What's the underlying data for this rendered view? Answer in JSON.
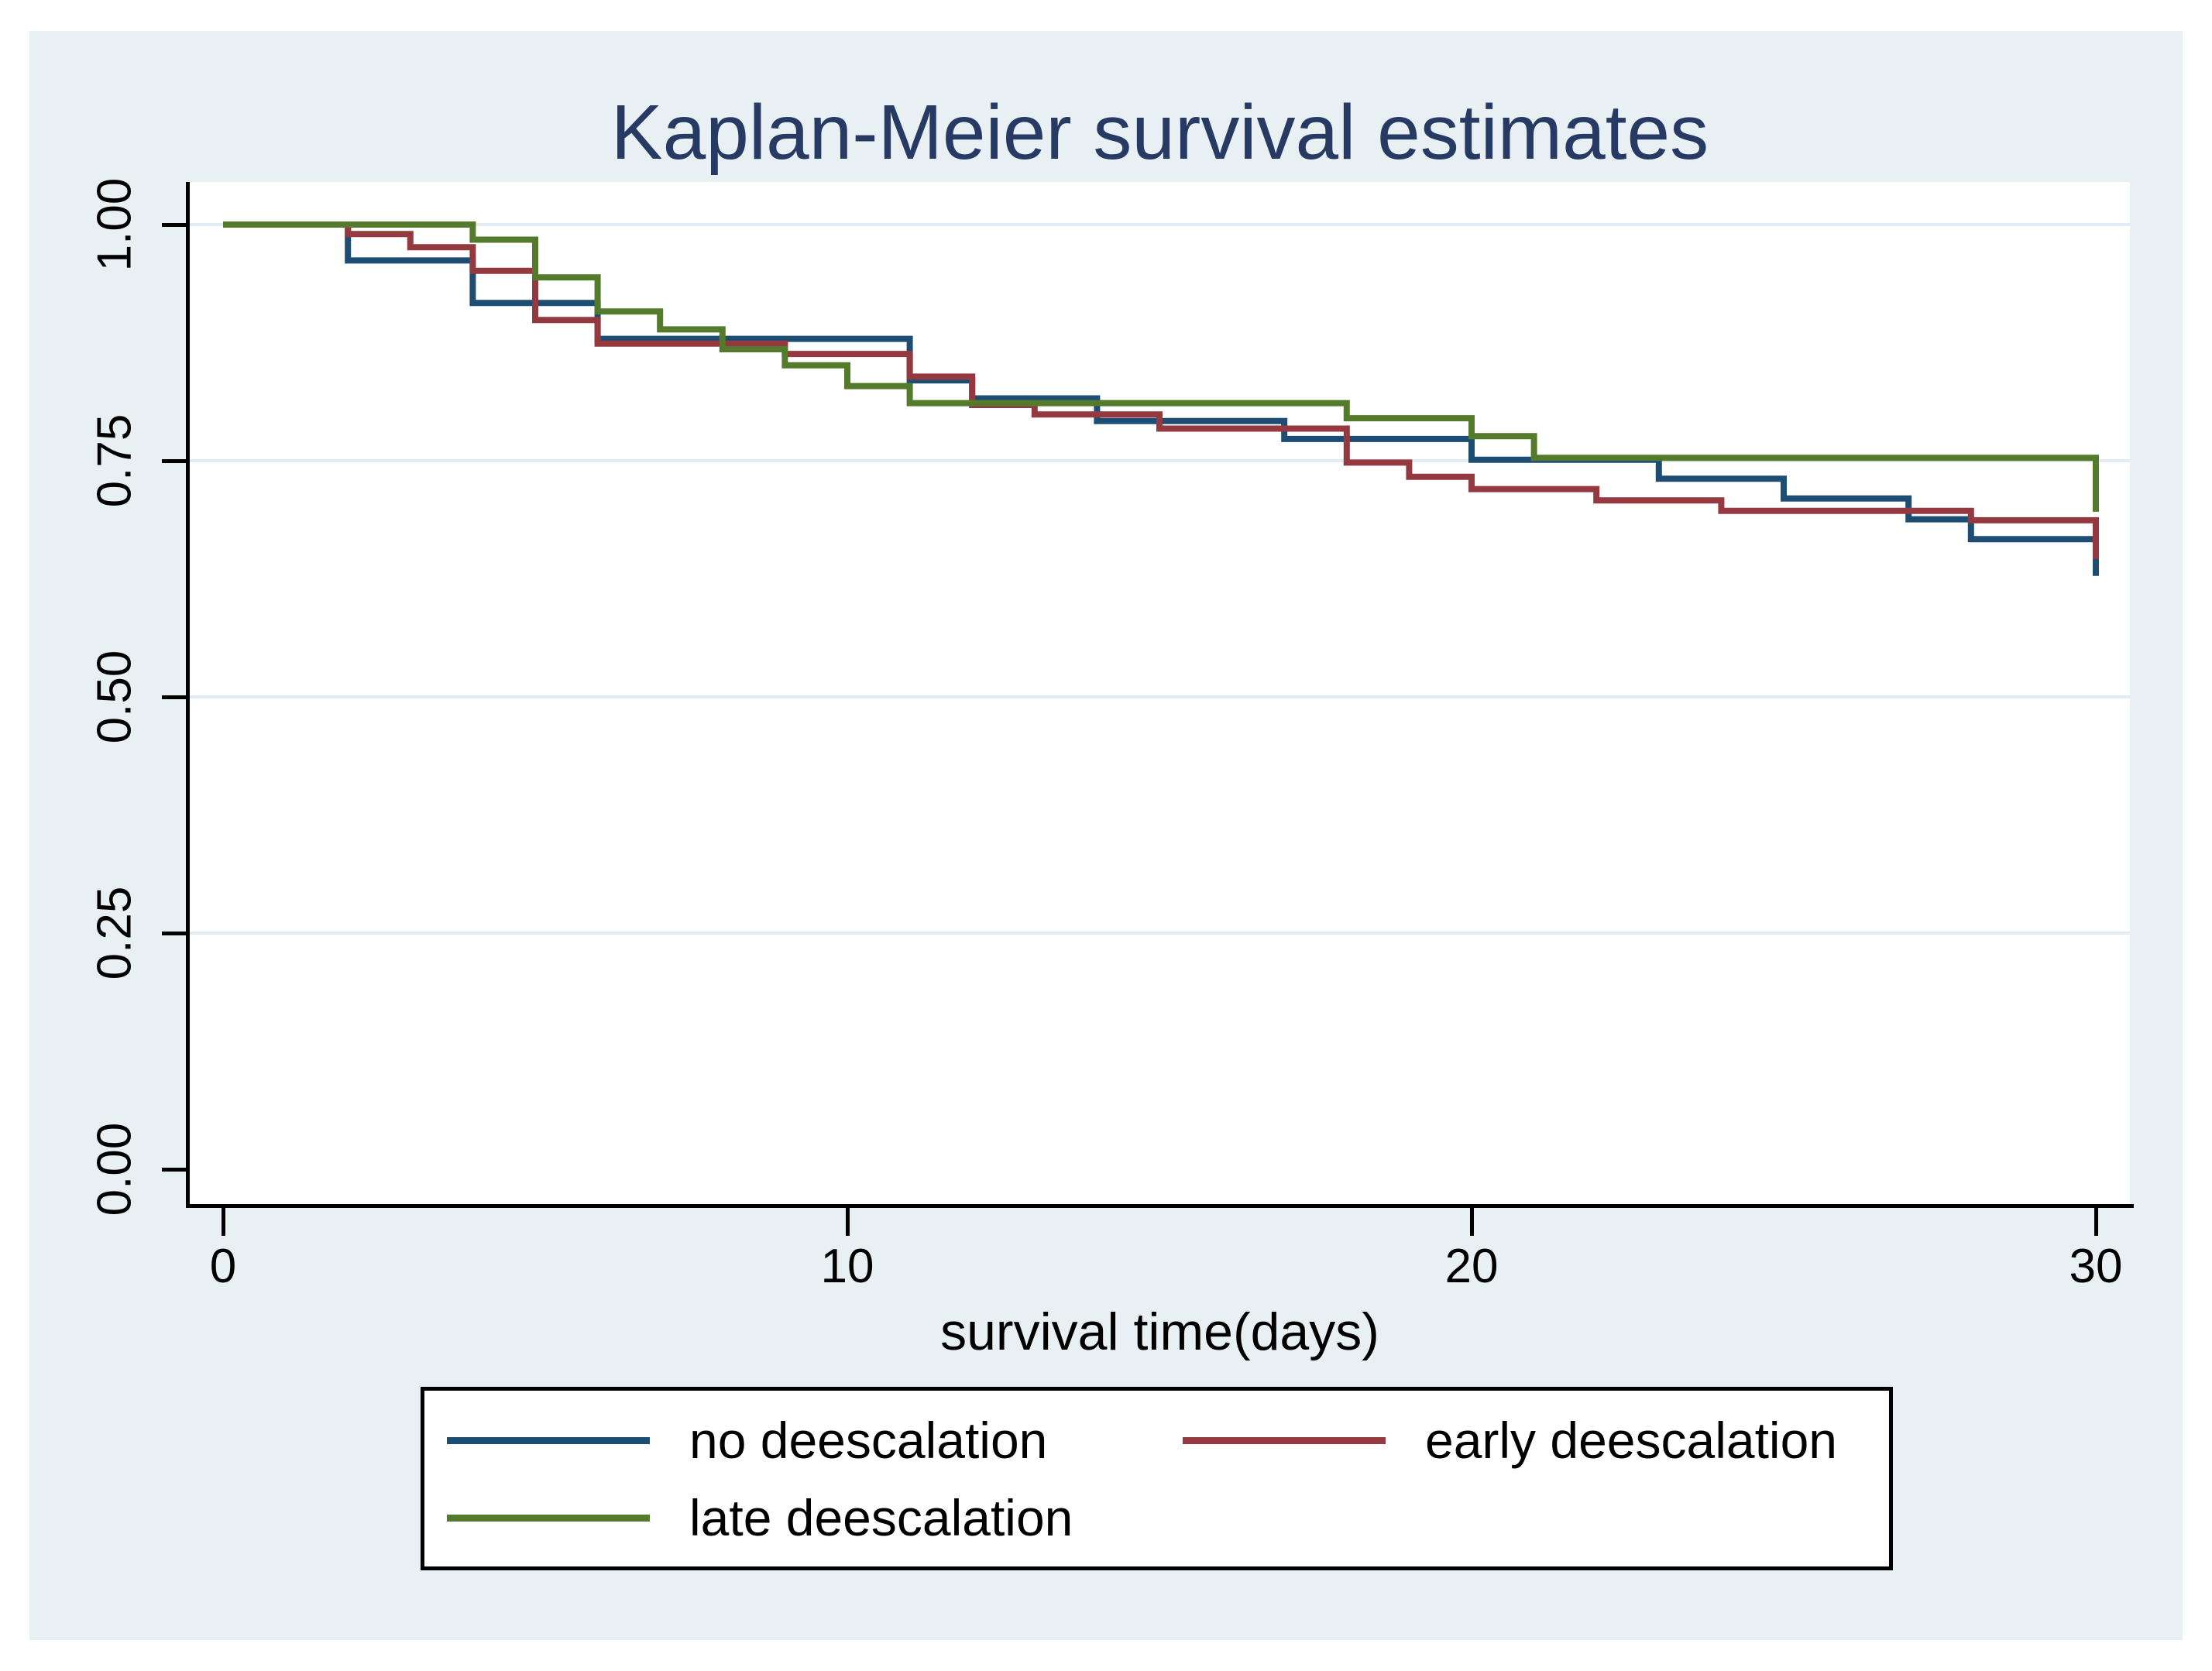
{
  "window": {
    "outer_margin_color": "#ffffff",
    "canvas_background": "#e9f0f4",
    "plot_background": "#ffffff",
    "gridline_color": "#e2ebf1",
    "axis_color": "#000000"
  },
  "title": {
    "text": "Kaplan-Meier survival estimates",
    "color": "#263a64"
  },
  "x_axis": {
    "label": "survival time(days)",
    "tick_labels": [
      "0",
      "10",
      "20",
      "30"
    ],
    "tick_values": [
      0,
      10,
      20,
      30
    ]
  },
  "y_axis": {
    "tick_labels": [
      "0.00",
      "0.25",
      "0.50",
      "0.75",
      "1.00"
    ],
    "tick_values": [
      0,
      0.25,
      0.5,
      0.75,
      1
    ],
    "gridline_values": [
      0.25,
      0.5,
      0.75,
      1
    ]
  },
  "legend": {
    "items": [
      {
        "label": "no deescalation",
        "color": "#1d4d73"
      },
      {
        "label": "early deescalation",
        "color": "#943940"
      },
      {
        "label": "late deescalation",
        "color": "#547a2b"
      }
    ]
  },
  "chart_data": {
    "type": "line",
    "subtype": "kaplan-meier-step",
    "title": "Kaplan-Meier survival estimates",
    "xlabel": "survival time(days)",
    "ylabel": "",
    "xlim": [
      0,
      30
    ],
    "ylim": [
      0,
      1
    ],
    "grid": "horizontal",
    "legend_position": "bottom",
    "series": [
      {
        "name": "no deescalation",
        "color": "#1d4d73",
        "steps": [
          [
            0,
            1.0
          ],
          [
            2,
            0.962
          ],
          [
            4,
            0.917
          ],
          [
            6,
            0.879
          ],
          [
            11,
            0.835
          ],
          [
            12,
            0.816
          ],
          [
            14,
            0.792
          ],
          [
            17,
            0.773
          ],
          [
            20,
            0.751
          ],
          [
            23,
            0.731
          ],
          [
            25,
            0.71
          ],
          [
            27,
            0.688
          ],
          [
            28,
            0.667
          ],
          [
            30,
            0.628
          ]
        ]
      },
      {
        "name": "early deescalation",
        "color": "#943940",
        "steps": [
          [
            0,
            1.0
          ],
          [
            2,
            0.99
          ],
          [
            3,
            0.976
          ],
          [
            4,
            0.951
          ],
          [
            5,
            0.899
          ],
          [
            6,
            0.874
          ],
          [
            9,
            0.863
          ],
          [
            11,
            0.839
          ],
          [
            12,
            0.809
          ],
          [
            13,
            0.799
          ],
          [
            15,
            0.784
          ],
          [
            18,
            0.748
          ],
          [
            19,
            0.733
          ],
          [
            20,
            0.72
          ],
          [
            22,
            0.708
          ],
          [
            24,
            0.697
          ],
          [
            28,
            0.687
          ],
          [
            30,
            0.646
          ]
        ]
      },
      {
        "name": "late deescalation",
        "color": "#547a2b",
        "steps": [
          [
            0,
            1.0
          ],
          [
            4,
            0.984
          ],
          [
            5,
            0.944
          ],
          [
            6,
            0.908
          ],
          [
            7,
            0.889
          ],
          [
            8,
            0.868
          ],
          [
            9,
            0.851
          ],
          [
            10,
            0.829
          ],
          [
            11,
            0.811
          ],
          [
            18,
            0.795
          ],
          [
            20,
            0.776
          ],
          [
            21,
            0.753
          ],
          [
            30,
            0.696
          ]
        ]
      }
    ]
  }
}
